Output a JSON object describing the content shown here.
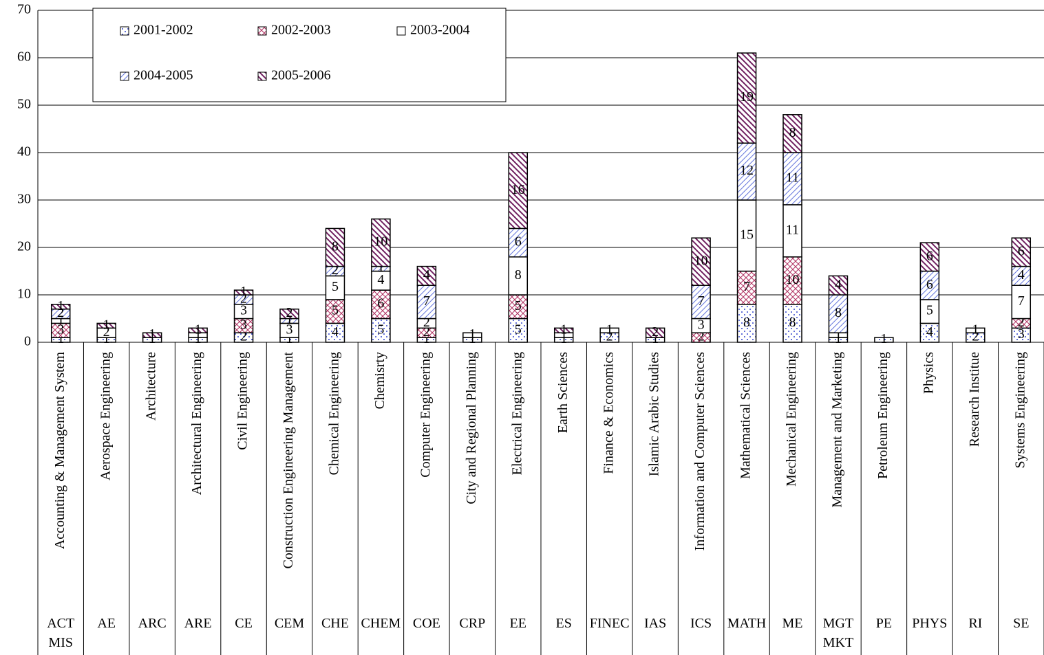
{
  "chart_data": {
    "type": "stacked_bar",
    "categories": [
      "Accounting & Management System",
      "Aerospace Engineering",
      "Architecture",
      "Architectural Engineering",
      "Civil Engineering",
      "Construction Engineering Management",
      "Chemical Engineering",
      "Chemisrty",
      "Computer Engineering",
      "City and Regional Planning",
      "Electrical Engineering",
      "Earth Sciences",
      "Finance & Economics",
      "Islamic Arabic Studies",
      "Information and Computer Sciences",
      "Mathematical Sciences",
      "Mechanical Engineering",
      "Management and Marketing",
      "Petroleum Engineering",
      "Physics",
      "Research Institue",
      "Systems Engineering"
    ],
    "codes": [
      "ACT MIS",
      "AE",
      "ARC",
      "ARE",
      "CE",
      "CEM",
      "CHE",
      "CHEM",
      "COE",
      "CRP",
      "EE",
      "ES",
      "FINEC",
      "IAS",
      "ICS",
      "MATH",
      "ME",
      "MGT MKT",
      "PE",
      "PHYS",
      "RI",
      "SE"
    ],
    "series": [
      {
        "name": "2001-2002",
        "color": "#3344cc",
        "values": [
          1,
          1,
          1,
          1,
          2,
          1,
          4,
          5,
          1,
          1,
          5,
          1,
          2,
          1,
          0,
          8,
          8,
          1,
          1,
          4,
          2,
          3
        ]
      },
      {
        "name": "2002-2003",
        "color": "#b03060",
        "values": [
          3,
          0,
          0,
          0,
          3,
          0,
          5,
          6,
          2,
          0,
          5,
          0,
          0,
          0,
          2,
          7,
          10,
          0,
          0,
          0,
          0,
          2
        ]
      },
      {
        "name": "2003-2004",
        "color": "#ffffff",
        "values": [
          1,
          2,
          0,
          1,
          3,
          3,
          5,
          4,
          2,
          1,
          8,
          1,
          1,
          0,
          3,
          15,
          11,
          1,
          0,
          5,
          1,
          7
        ]
      },
      {
        "name": "2004-2005",
        "color": "#6677dd",
        "values": [
          2,
          0,
          0,
          0,
          2,
          1,
          2,
          1,
          7,
          0,
          6,
          0,
          0,
          0,
          7,
          12,
          11,
          8,
          0,
          6,
          0,
          4
        ]
      },
      {
        "name": "2005-2006",
        "color": "#702060",
        "values": [
          1,
          1,
          1,
          1,
          1,
          2,
          8,
          10,
          4,
          0,
          16,
          1,
          0,
          2,
          10,
          19,
          8,
          4,
          0,
          6,
          0,
          6
        ]
      }
    ],
    "ylim": [
      0,
      70
    ],
    "yticks": [
      0,
      10,
      20,
      30,
      40,
      50,
      60,
      70
    ],
    "grid": true
  }
}
